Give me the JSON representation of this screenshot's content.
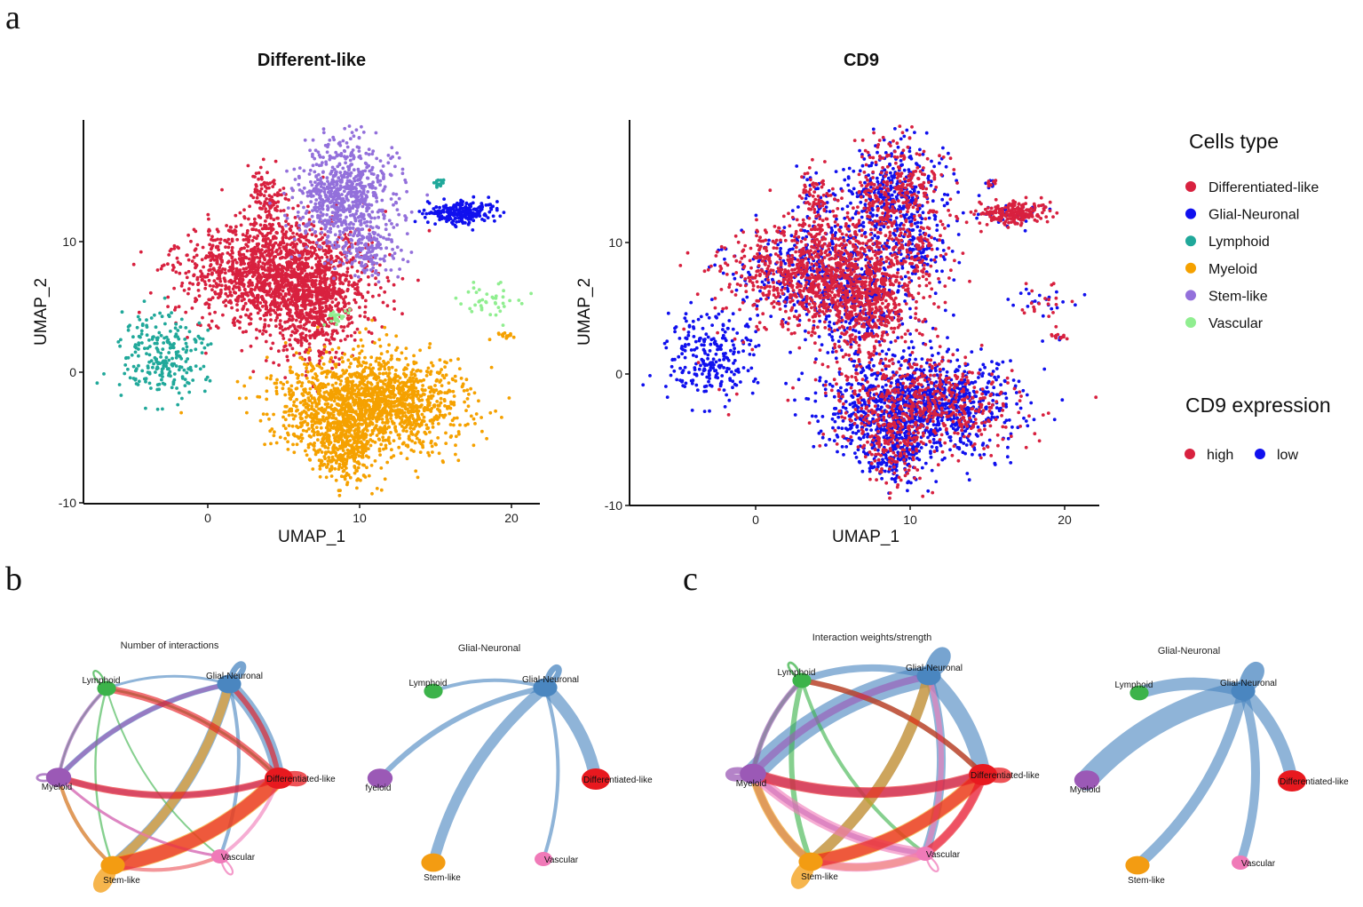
{
  "panel_letters": {
    "a": "a",
    "b": "b",
    "c": "c"
  },
  "colors": {
    "Differentiated-like": "#d8213f",
    "Glial-Neuronal": "#1010ee",
    "Lymphoid": "#20a89a",
    "Myeloid": "#f5a100",
    "Stem-like": "#9370db",
    "Vascular": "#90ee90",
    "high": "#d8213f",
    "low": "#1010ee",
    "net_Differentiated-like": "#e8191f",
    "net_Glial-Neuronal": "#4a86c0",
    "net_Lymphoid": "#3cb34a",
    "net_Myeloid": "#9b59b6",
    "net_Stem-like": "#f39c12",
    "net_Vascular": "#f07ab8"
  },
  "legend": {
    "cells_title": "Cells type",
    "cells_items": [
      "Differentiated-like",
      "Glial-Neuronal",
      "Lymphoid",
      "Myeloid",
      "Stem-like",
      "Vascular"
    ],
    "expr_title": "CD9 expression",
    "expr_items": [
      "high",
      "low"
    ]
  },
  "chart_data": [
    {
      "type": "scatter",
      "title": "Different-like",
      "xlabel": "UMAP_1",
      "ylabel": "UMAP_2",
      "xlim": [
        -8.5,
        22
      ],
      "ylim": [
        -10,
        19
      ],
      "xticks": [
        0,
        10,
        20
      ],
      "yticks": [
        -10,
        0,
        10
      ],
      "x_tick_labels": [
        "0",
        "10",
        "20"
      ],
      "y_tick_labels": [
        "-10",
        "0",
        "10"
      ],
      "color_by": "cell_type",
      "clusters": [
        {
          "name": "Differentiated-like",
          "center": [
            4.5,
            7.5
          ],
          "spread": [
            3.0,
            2.0
          ],
          "n": 1500
        },
        {
          "name": "Differentiated-like",
          "center": [
            7.0,
            4.8
          ],
          "spread": [
            1.5,
            2.0
          ],
          "n": 500
        },
        {
          "name": "Differentiated-like",
          "center": [
            3.8,
            13.0
          ],
          "spread": [
            0.6,
            1.4
          ],
          "n": 120
        },
        {
          "name": "Stem-like",
          "center": [
            9.0,
            13.5
          ],
          "spread": [
            1.6,
            2.2
          ],
          "n": 750
        },
        {
          "name": "Stem-like",
          "center": [
            10.8,
            9.5
          ],
          "spread": [
            0.9,
            1.2
          ],
          "n": 120
        },
        {
          "name": "Myeloid",
          "center": [
            10.5,
            -2.5
          ],
          "spread": [
            3.0,
            1.8
          ],
          "n": 1700
        },
        {
          "name": "Myeloid",
          "center": [
            9.0,
            -6.0
          ],
          "spread": [
            1.0,
            1.4
          ],
          "n": 300
        },
        {
          "name": "Glial-Neuronal",
          "center": [
            16.7,
            12.2
          ],
          "spread": [
            1.1,
            0.45
          ],
          "n": 240
        },
        {
          "name": "Lymphoid",
          "center": [
            -3.0,
            1.2
          ],
          "spread": [
            1.4,
            1.5
          ],
          "n": 240
        },
        {
          "name": "Lymphoid",
          "center": [
            15.3,
            14.5
          ],
          "spread": [
            0.18,
            0.25
          ],
          "n": 18
        },
        {
          "name": "Vascular",
          "center": [
            18.5,
            5.5
          ],
          "spread": [
            1.0,
            0.6
          ],
          "n": 40
        },
        {
          "name": "Vascular",
          "center": [
            8.5,
            4.2
          ],
          "spread": [
            0.4,
            0.3
          ],
          "n": 25
        },
        {
          "name": "Myeloid",
          "center": [
            19.6,
            2.8
          ],
          "spread": [
            0.3,
            0.15
          ],
          "n": 15
        }
      ]
    },
    {
      "type": "scatter",
      "title": "CD9",
      "xlabel": "UMAP_1",
      "ylabel": "UMAP_2",
      "xlim": [
        -8.5,
        22
      ],
      "ylim": [
        -10,
        19
      ],
      "xticks": [
        0,
        10,
        20
      ],
      "yticks": [
        -10,
        0,
        10
      ],
      "x_tick_labels": [
        "0",
        "10",
        "20"
      ],
      "y_tick_labels": [
        "-10",
        "0",
        "10"
      ],
      "color_by": "CD9_expression",
      "groups": [
        "high",
        "low"
      ],
      "clusters": [
        {
          "name": "mixed",
          "center": [
            4.5,
            7.5
          ],
          "spread": [
            3.0,
            2.0
          ],
          "n": 1500,
          "high_fraction": 0.7
        },
        {
          "name": "mixed",
          "center": [
            7.0,
            4.8
          ],
          "spread": [
            1.5,
            2.0
          ],
          "n": 500,
          "high_fraction": 0.7
        },
        {
          "name": "mixed",
          "center": [
            3.8,
            13.0
          ],
          "spread": [
            0.6,
            1.4
          ],
          "n": 120,
          "high_fraction": 0.7
        },
        {
          "name": "mixed",
          "center": [
            9.0,
            13.5
          ],
          "spread": [
            1.6,
            2.2
          ],
          "n": 750,
          "high_fraction": 0.45
        },
        {
          "name": "mixed",
          "center": [
            10.8,
            9.5
          ],
          "spread": [
            0.9,
            1.2
          ],
          "n": 120,
          "high_fraction": 0.45
        },
        {
          "name": "mixed",
          "center": [
            10.5,
            -2.5
          ],
          "spread": [
            3.0,
            1.8
          ],
          "n": 1700,
          "high_fraction": 0.35
        },
        {
          "name": "mixed",
          "center": [
            9.0,
            -6.0
          ],
          "spread": [
            1.0,
            1.4
          ],
          "n": 300,
          "high_fraction": 0.35
        },
        {
          "name": "mixed",
          "center": [
            16.7,
            12.2
          ],
          "spread": [
            1.1,
            0.45
          ],
          "n": 240,
          "high_fraction": 0.8
        },
        {
          "name": "low",
          "center": [
            -3.0,
            1.2
          ],
          "spread": [
            1.4,
            1.5
          ],
          "n": 240,
          "high_fraction": 0.05
        },
        {
          "name": "mixed",
          "center": [
            15.3,
            14.5
          ],
          "spread": [
            0.18,
            0.25
          ],
          "n": 18,
          "high_fraction": 0.6
        },
        {
          "name": "mixed",
          "center": [
            18.5,
            5.5
          ],
          "spread": [
            1.0,
            0.6
          ],
          "n": 40,
          "high_fraction": 0.5
        },
        {
          "name": "mixed",
          "center": [
            8.5,
            4.2
          ],
          "spread": [
            0.4,
            0.3
          ],
          "n": 25,
          "high_fraction": 0.5
        },
        {
          "name": "mixed",
          "center": [
            19.6,
            2.8
          ],
          "spread": [
            0.3,
            0.15
          ],
          "n": 15,
          "high_fraction": 0.6
        }
      ]
    },
    {
      "type": "network",
      "title": "Number of interactions",
      "panel": "b",
      "nodes": [
        "Glial-Neuronal",
        "Lymphoid",
        "Myeloid",
        "Stem-like",
        "Vascular",
        "Differentiated-like"
      ],
      "node_sizes": {
        "Glial-Neuronal": 1.1,
        "Lymphoid": 0.6,
        "Myeloid": 1.2,
        "Stem-like": 1.1,
        "Vascular": 0.5,
        "Differentiated-like": 1.5
      },
      "edges": [
        {
          "from": "Glial-Neuronal",
          "to": "Differentiated-like",
          "weight": 7
        },
        {
          "from": "Glial-Neuronal",
          "to": "Stem-like",
          "weight": 6
        },
        {
          "from": "Glial-Neuronal",
          "to": "Myeloid",
          "weight": 3
        },
        {
          "from": "Glial-Neuronal",
          "to": "Lymphoid",
          "weight": 1.5
        },
        {
          "from": "Glial-Neuronal",
          "to": "Vascular",
          "weight": 2
        },
        {
          "from": "Glial-Neuronal",
          "to": "Glial-Neuronal",
          "weight": 6
        },
        {
          "from": "Lymphoid",
          "to": "Lymphoid",
          "weight": 2
        },
        {
          "from": "Lymphoid",
          "to": "Differentiated-like",
          "weight": 1.5
        },
        {
          "from": "Lymphoid",
          "to": "Stem-like",
          "weight": 1.2
        },
        {
          "from": "Lymphoid",
          "to": "Vascular",
          "weight": 1
        },
        {
          "from": "Lymphoid",
          "to": "Myeloid",
          "weight": 1
        },
        {
          "from": "Myeloid",
          "to": "Myeloid",
          "weight": 2.5
        },
        {
          "from": "Myeloid",
          "to": "Glial-Neuronal",
          "weight": 2.5
        },
        {
          "from": "Myeloid",
          "to": "Differentiated-like",
          "weight": 3
        },
        {
          "from": "Myeloid",
          "to": "Stem-like",
          "weight": 2
        },
        {
          "from": "Myeloid",
          "to": "Lymphoid",
          "weight": 2
        },
        {
          "from": "Myeloid",
          "to": "Vascular",
          "weight": 1.5
        },
        {
          "from": "Stem-like",
          "to": "Stem-like",
          "weight": 10
        },
        {
          "from": "Stem-like",
          "to": "Differentiated-like",
          "weight": 9
        },
        {
          "from": "Stem-like",
          "to": "Glial-Neuronal",
          "weight": 5
        },
        {
          "from": "Stem-like",
          "to": "Myeloid",
          "weight": 2
        },
        {
          "from": "Stem-like",
          "to": "Vascular",
          "weight": 2
        },
        {
          "from": "Vascular",
          "to": "Vascular",
          "weight": 2
        },
        {
          "from": "Vascular",
          "to": "Differentiated-like",
          "weight": 2
        },
        {
          "from": "Vascular",
          "to": "Stem-like",
          "weight": 2
        },
        {
          "from": "Vascular",
          "to": "Myeloid",
          "weight": 1.5
        },
        {
          "from": "Differentiated-like",
          "to": "Differentiated-like",
          "weight": 8
        },
        {
          "from": "Differentiated-like",
          "to": "Stem-like",
          "weight": 8
        },
        {
          "from": "Differentiated-like",
          "to": "Lymphoid",
          "weight": 4
        },
        {
          "from": "Differentiated-like",
          "to": "Myeloid",
          "weight": 4
        },
        {
          "from": "Differentiated-like",
          "to": "Glial-Neuronal",
          "weight": 3
        }
      ]
    },
    {
      "type": "network",
      "title": "Glial-Neuronal",
      "panel": "b",
      "nodes": [
        "Glial-Neuronal",
        "Lymphoid",
        "Myeloid",
        "Stem-like",
        "Vascular",
        "Differentiated-like"
      ],
      "node_labels": {
        "Glial-Neuronal": "Glial-Neuronal",
        "Lymphoid": "Lymphoid",
        "Myeloid": "fyeloid",
        "Stem-like": "Stem-like",
        "Vascular": "Vascular",
        "Differentiated-like": "Differentiated-like"
      },
      "node_sizes": {
        "Glial-Neuronal": 1.1,
        "Lymphoid": 0.6,
        "Myeloid": 1.2,
        "Stem-like": 1.1,
        "Vascular": 0.5,
        "Differentiated-like": 1.5
      },
      "edges": [
        {
          "from": "Glial-Neuronal",
          "to": "Glial-Neuronal",
          "weight": 6
        },
        {
          "from": "Glial-Neuronal",
          "to": "Differentiated-like",
          "weight": 7
        },
        {
          "from": "Glial-Neuronal",
          "to": "Stem-like",
          "weight": 6
        },
        {
          "from": "Glial-Neuronal",
          "to": "Myeloid",
          "weight": 3
        },
        {
          "from": "Glial-Neuronal",
          "to": "Lymphoid",
          "weight": 2
        },
        {
          "from": "Glial-Neuronal",
          "to": "Vascular",
          "weight": 2
        }
      ]
    },
    {
      "type": "network",
      "title": "Interaction weights/strength",
      "panel": "c",
      "nodes": [
        "Glial-Neuronal",
        "Lymphoid",
        "Myeloid",
        "Stem-like",
        "Vascular",
        "Differentiated-like"
      ],
      "node_sizes": {
        "Glial-Neuronal": 1.1,
        "Lymphoid": 0.6,
        "Myeloid": 1.3,
        "Stem-like": 1.1,
        "Vascular": 0.5,
        "Differentiated-like": 1.5
      },
      "edges": [
        {
          "from": "Glial-Neuronal",
          "to": "Glial-Neuronal",
          "weight": 12
        },
        {
          "from": "Glial-Neuronal",
          "to": "Differentiated-like",
          "weight": 9
        },
        {
          "from": "Glial-Neuronal",
          "to": "Myeloid",
          "weight": 12
        },
        {
          "from": "Glial-Neuronal",
          "to": "Stem-like",
          "weight": 6
        },
        {
          "from": "Glial-Neuronal",
          "to": "Lymphoid",
          "weight": 4
        },
        {
          "from": "Glial-Neuronal",
          "to": "Vascular",
          "weight": 5
        },
        {
          "from": "Lymphoid",
          "to": "Lymphoid",
          "weight": 2.5
        },
        {
          "from": "Lymphoid",
          "to": "Differentiated-like",
          "weight": 3
        },
        {
          "from": "Lymphoid",
          "to": "Stem-like",
          "weight": 3
        },
        {
          "from": "Lymphoid",
          "to": "Vascular",
          "weight": 2
        },
        {
          "from": "Lymphoid",
          "to": "Myeloid",
          "weight": 2
        },
        {
          "from": "Myeloid",
          "to": "Myeloid",
          "weight": 7
        },
        {
          "from": "Myeloid",
          "to": "Glial-Neuronal",
          "weight": 4
        },
        {
          "from": "Myeloid",
          "to": "Differentiated-like",
          "weight": 5
        },
        {
          "from": "Myeloid",
          "to": "Stem-like",
          "weight": 4
        },
        {
          "from": "Myeloid",
          "to": "Lymphoid",
          "weight": 3
        },
        {
          "from": "Myeloid",
          "to": "Vascular",
          "weight": 3
        },
        {
          "from": "Stem-like",
          "to": "Stem-like",
          "weight": 10
        },
        {
          "from": "Stem-like",
          "to": "Differentiated-like",
          "weight": 8
        },
        {
          "from": "Stem-like",
          "to": "Glial-Neuronal",
          "weight": 6
        },
        {
          "from": "Stem-like",
          "to": "Myeloid",
          "weight": 5
        },
        {
          "from": "Stem-like",
          "to": "Vascular",
          "weight": 4
        },
        {
          "from": "Vascular",
          "to": "Vascular",
          "weight": 2
        },
        {
          "from": "Vascular",
          "to": "Differentiated-like",
          "weight": 4
        },
        {
          "from": "Vascular",
          "to": "Stem-like",
          "weight": 5
        },
        {
          "from": "Vascular",
          "to": "Myeloid",
          "weight": 6
        },
        {
          "from": "Vascular",
          "to": "Glial-Neuronal",
          "weight": 3
        },
        {
          "from": "Differentiated-like",
          "to": "Differentiated-like",
          "weight": 8
        },
        {
          "from": "Differentiated-like",
          "to": "Stem-like",
          "weight": 7
        },
        {
          "from": "Differentiated-like",
          "to": "Myeloid",
          "weight": 6
        },
        {
          "from": "Differentiated-like",
          "to": "Lymphoid",
          "weight": 3
        },
        {
          "from": "Differentiated-like",
          "to": "Vascular",
          "weight": 5
        }
      ]
    },
    {
      "type": "network",
      "title": "Glial-Neuronal",
      "panel": "c",
      "nodes": [
        "Glial-Neuronal",
        "Lymphoid",
        "Myeloid",
        "Stem-like",
        "Vascular",
        "Differentiated-like"
      ],
      "node_sizes": {
        "Glial-Neuronal": 1.1,
        "Lymphoid": 0.6,
        "Myeloid": 1.2,
        "Stem-like": 1.1,
        "Vascular": 0.5,
        "Differentiated-like": 1.5
      },
      "edges": [
        {
          "from": "Glial-Neuronal",
          "to": "Glial-Neuronal",
          "weight": 12
        },
        {
          "from": "Glial-Neuronal",
          "to": "Myeloid",
          "weight": 12
        },
        {
          "from": "Glial-Neuronal",
          "to": "Lymphoid",
          "weight": 7
        },
        {
          "from": "Glial-Neuronal",
          "to": "Differentiated-like",
          "weight": 7
        },
        {
          "from": "Glial-Neuronal",
          "to": "Stem-like",
          "weight": 6
        },
        {
          "from": "Glial-Neuronal",
          "to": "Vascular",
          "weight": 5
        }
      ]
    }
  ]
}
